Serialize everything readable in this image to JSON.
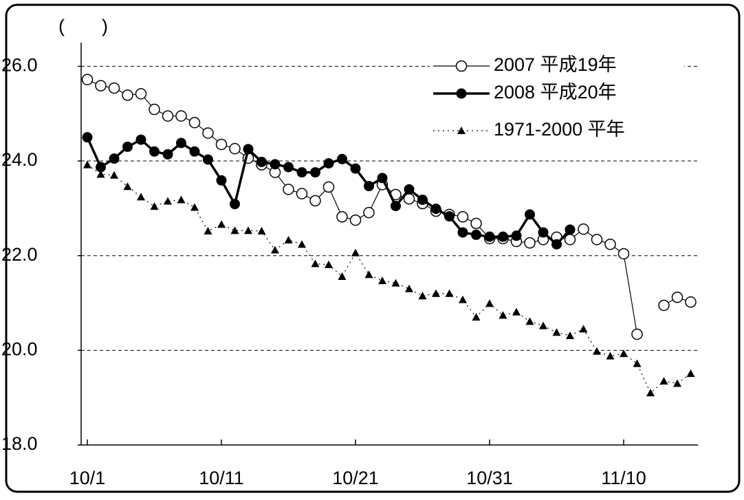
{
  "chart_data": {
    "type": "line",
    "title": "(　　)",
    "categories": [
      "10/1",
      null,
      null,
      null,
      null,
      null,
      null,
      null,
      null,
      null,
      "10/11",
      null,
      null,
      null,
      null,
      null,
      null,
      null,
      null,
      null,
      "10/21",
      null,
      null,
      null,
      null,
      null,
      null,
      null,
      null,
      null,
      "10/31",
      null,
      null,
      null,
      null,
      null,
      null,
      null,
      null,
      null,
      "11/10",
      null,
      null,
      null,
      null,
      null
    ],
    "ylim": [
      18,
      26.5
    ],
    "yticks": [
      {
        "value": 18,
        "label": "18.0"
      },
      {
        "value": 20,
        "label": "20.0"
      },
      {
        "value": 22,
        "label": "22.0"
      },
      {
        "value": 24,
        "label": "24.0"
      },
      {
        "value": 26,
        "label": "26.0"
      }
    ],
    "grid": true,
    "legend": "top-right",
    "series": [
      {
        "name": "2007 平成19年",
        "color": "#000000",
        "marker": "open-circle",
        "line_width": 1.2,
        "dash": "solid",
        "values": [
          25.72,
          25.59,
          25.54,
          25.39,
          25.42,
          25.09,
          24.95,
          24.95,
          24.81,
          24.59,
          24.35,
          24.26,
          24.06,
          23.92,
          23.76,
          23.4,
          23.31,
          23.16,
          23.45,
          22.82,
          22.75,
          22.91,
          23.5,
          23.29,
          23.2,
          23.1,
          22.94,
          22.87,
          22.82,
          22.68,
          22.36,
          22.36,
          22.3,
          22.27,
          22.34,
          22.39,
          22.34,
          22.56,
          22.34,
          22.24,
          22.04,
          20.34,
          null,
          20.95,
          21.12,
          21.02
        ]
      },
      {
        "name": "2008 平成20年",
        "color": "#000000",
        "marker": "filled-circle",
        "line_width": 3.5,
        "dash": "solid",
        "values": [
          24.5,
          23.87,
          24.05,
          24.3,
          24.45,
          24.2,
          24.14,
          24.38,
          24.2,
          24.03,
          23.59,
          23.09,
          24.25,
          23.98,
          23.93,
          23.87,
          23.76,
          23.76,
          23.95,
          24.04,
          23.84,
          23.47,
          23.64,
          23.05,
          23.4,
          23.18,
          22.99,
          22.83,
          22.49,
          22.44,
          22.4,
          22.4,
          22.42,
          22.87,
          22.49,
          22.24,
          22.55,
          null,
          null,
          null,
          null,
          null,
          null,
          null,
          null,
          null
        ]
      },
      {
        "name": "1971-2000 平年",
        "color": "#000000",
        "marker": "triangle",
        "line_width": 1.2,
        "dash": "dotted",
        "values": [
          23.92,
          23.72,
          23.7,
          23.46,
          23.24,
          23.04,
          23.15,
          23.18,
          23.02,
          22.52,
          22.66,
          22.53,
          22.53,
          22.52,
          22.12,
          22.33,
          22.24,
          21.83,
          21.81,
          21.56,
          22.06,
          21.6,
          21.47,
          21.42,
          21.3,
          21.15,
          21.2,
          21.2,
          21.07,
          20.7,
          20.99,
          20.74,
          20.81,
          20.61,
          20.52,
          20.38,
          20.31,
          20.45,
          19.98,
          19.88,
          19.93,
          19.72,
          19.1,
          19.35,
          19.3,
          19.51
        ]
      }
    ]
  }
}
